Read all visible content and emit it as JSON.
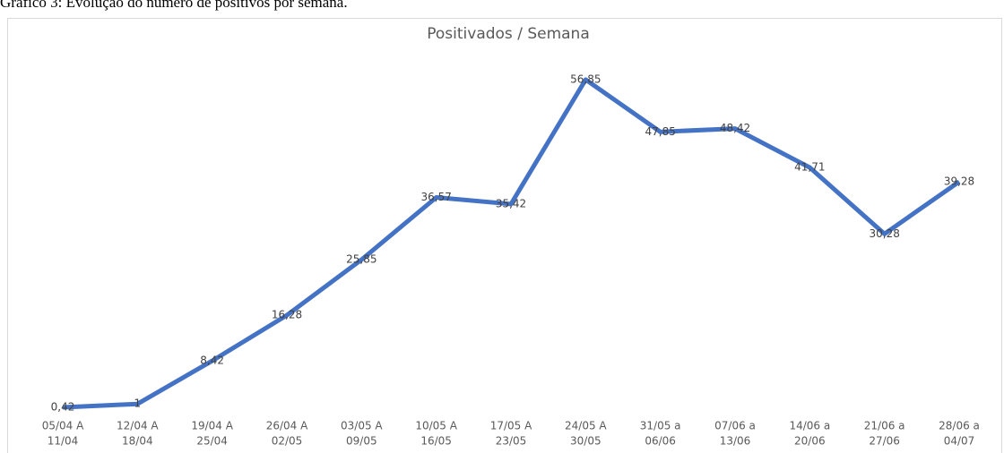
{
  "caption": "Gráfico 3: Evolução do número de positivos por semana.",
  "chart_data": {
    "type": "line",
    "title": "Positivados / Semana",
    "categories": [
      [
        "05/04 A",
        "11/04"
      ],
      [
        "12/04 A",
        "18/04"
      ],
      [
        "19/04 A",
        "25/04"
      ],
      [
        "26/04 A",
        "02/05"
      ],
      [
        "03/05 A",
        "09/05"
      ],
      [
        "10/05 A",
        "16/05"
      ],
      [
        "17/05 A",
        "23/05"
      ],
      [
        "24/05 A",
        "30/05"
      ],
      [
        "31/05 a",
        "06/06"
      ],
      [
        "07/06 a",
        "13/06"
      ],
      [
        "14/06 a",
        "20/06"
      ],
      [
        "21/06 a",
        "27/06"
      ],
      [
        "28/06 a",
        "04/07"
      ]
    ],
    "values": [
      0.42,
      1,
      8.42,
      16.28,
      25.85,
      36.57,
      35.42,
      56.85,
      47.85,
      48.42,
      41.71,
      30.28,
      39.28
    ],
    "value_labels": [
      "0,42",
      "1",
      "8,42",
      "16,28",
      "25,85",
      "36,57",
      "35,42",
      "56,85",
      "47,85",
      "48,42",
      "41,71",
      "30,28",
      "39,28"
    ],
    "color": "#4472c4",
    "ylim": [
      0,
      60
    ]
  }
}
